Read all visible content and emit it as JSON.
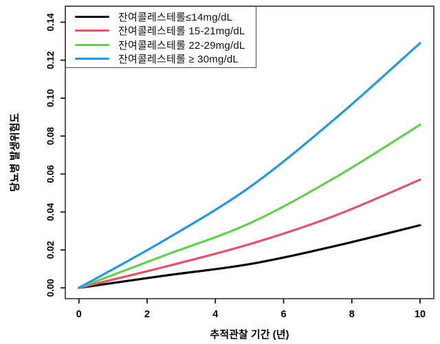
{
  "figure": {
    "background": "#ffffff",
    "frame_color": "#4a4a4a",
    "tick_color": "#1a1a1a",
    "text_color": "#000000"
  },
  "chart_data": {
    "type": "line",
    "title": "",
    "xlabel": "추적관찰 기간 (년)",
    "ylabel": "당뇨병 발생위험도",
    "xlim": [
      0,
      10
    ],
    "ylim": [
      0,
      0.14
    ],
    "grid": false,
    "legend_position": "top-left",
    "x_ticks": {
      "values": [
        0,
        2,
        4,
        6,
        8,
        10
      ],
      "labels": [
        "0",
        "2",
        "4",
        "6",
        "8",
        "10"
      ]
    },
    "y_ticks": {
      "values": [
        0,
        0.02,
        0.04,
        0.06,
        0.08,
        0.1,
        0.12,
        0.14
      ],
      "labels": [
        "0.00",
        "0.02",
        "0.04",
        "0.06",
        "0.08",
        "0.10",
        "0.12",
        "0.14"
      ]
    },
    "x": [
      0,
      2.5,
      5,
      7.5,
      10
    ],
    "series": [
      {
        "name": "잔여콜레스테롤≤14mg/dL",
        "color": "#000000",
        "values": [
          0.0,
          0.0064,
          0.0125,
          0.022,
          0.033
        ]
      },
      {
        "name": "잔여콜레스테롤 15-21mg/dL",
        "color": "#DF536B",
        "values": [
          0.0,
          0.011,
          0.023,
          0.038,
          0.057
        ]
      },
      {
        "name": "잔여콜레스테롤 22-29mg/dL",
        "color": "#61D04F",
        "values": [
          0.0,
          0.017,
          0.034,
          0.058,
          0.086
        ]
      },
      {
        "name": "잔여콜레스테롤 ≥ 30mg/dL",
        "color": "#2297E6",
        "values": [
          0.0,
          0.025,
          0.053,
          0.089,
          0.129
        ]
      }
    ]
  }
}
